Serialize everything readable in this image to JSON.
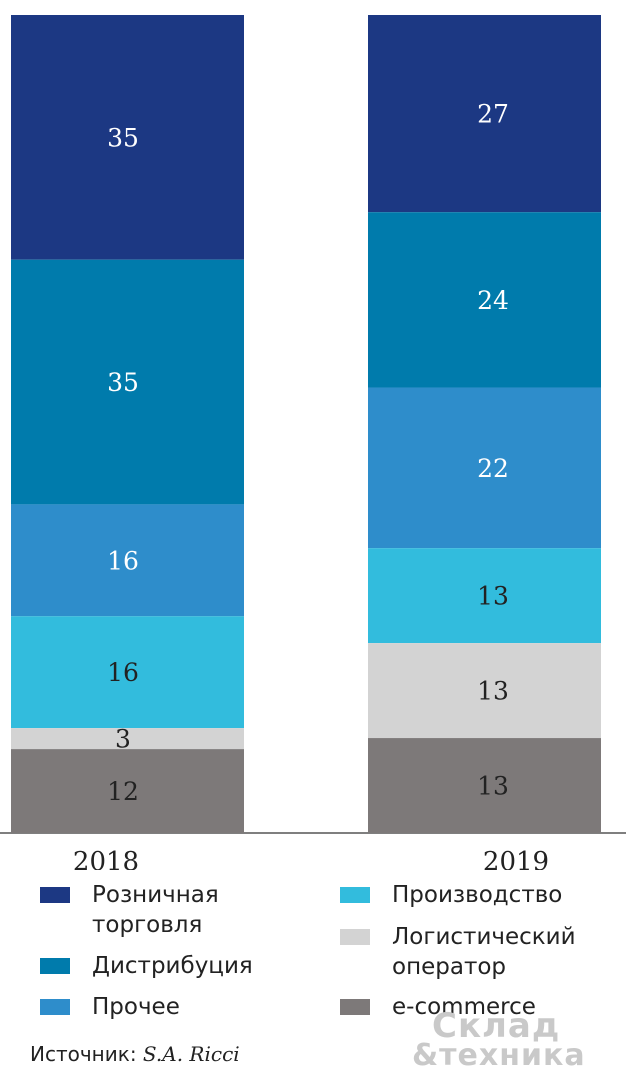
{
  "chart_data": {
    "type": "bar",
    "stacked": true,
    "categories": [
      "2018",
      "2019"
    ],
    "series": [
      {
        "name": "Розничная торговля",
        "color": "#1c3883",
        "values": [
          35,
          27
        ]
      },
      {
        "name": "Дистрибуция",
        "color": "#007bac",
        "values": [
          35,
          24
        ]
      },
      {
        "name": "Прочее",
        "color": "#2e8dcb",
        "values": [
          16,
          22
        ]
      },
      {
        "name": "Производство",
        "color": "#32bcdd",
        "values": [
          16,
          13
        ]
      },
      {
        "name": "Логистический оператор",
        "color": "#d3d3d3",
        "values": [
          3,
          13
        ]
      },
      {
        "name": "e-commerce",
        "color": "#7d7979",
        "values": [
          12,
          13
        ]
      }
    ],
    "axis_color": "#555555",
    "label_color_dark": "#222222",
    "label_color_light": "#ffffff"
  },
  "legend": {
    "items": [
      {
        "label": "Розничная торговля",
        "color": "#1c3883"
      },
      {
        "label": "Дистрибуция",
        "color": "#007bac"
      },
      {
        "label": "Прочее",
        "color": "#2e8dcb"
      },
      {
        "label": "Производство",
        "color": "#32bcdd"
      },
      {
        "label": "Логистический оператор",
        "color": "#d3d3d3"
      },
      {
        "label": "e-commerce",
        "color": "#7d7979"
      }
    ]
  },
  "source": {
    "prefix": "Источник: ",
    "name": "S.A. Ricci"
  },
  "watermark": {
    "line1": "Склад",
    "line2": "&техника"
  }
}
